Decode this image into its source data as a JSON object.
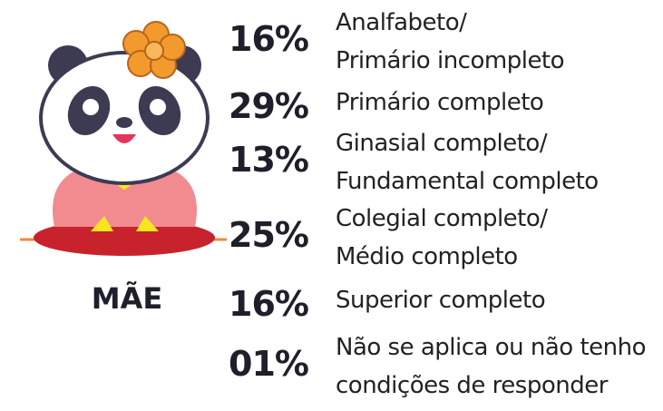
{
  "figure_label": "MÃE",
  "items": [
    {
      "percent": "16%",
      "label": [
        "Analfabeto/",
        "Primário incompleto"
      ]
    },
    {
      "percent": "29%",
      "label": [
        "Primário completo"
      ]
    },
    {
      "percent": "13%",
      "label": [
        "Ginasial completo/",
        "Fundamental completo"
      ]
    },
    {
      "percent": "25%",
      "label": [
        "Colegial completo/",
        "Médio completo"
      ]
    },
    {
      "percent": "16%",
      "label": [
        "Superior completo"
      ]
    },
    {
      "percent": "01%",
      "label": [
        "Não se aplica ou não tenho",
        "condições de responder"
      ]
    }
  ]
}
